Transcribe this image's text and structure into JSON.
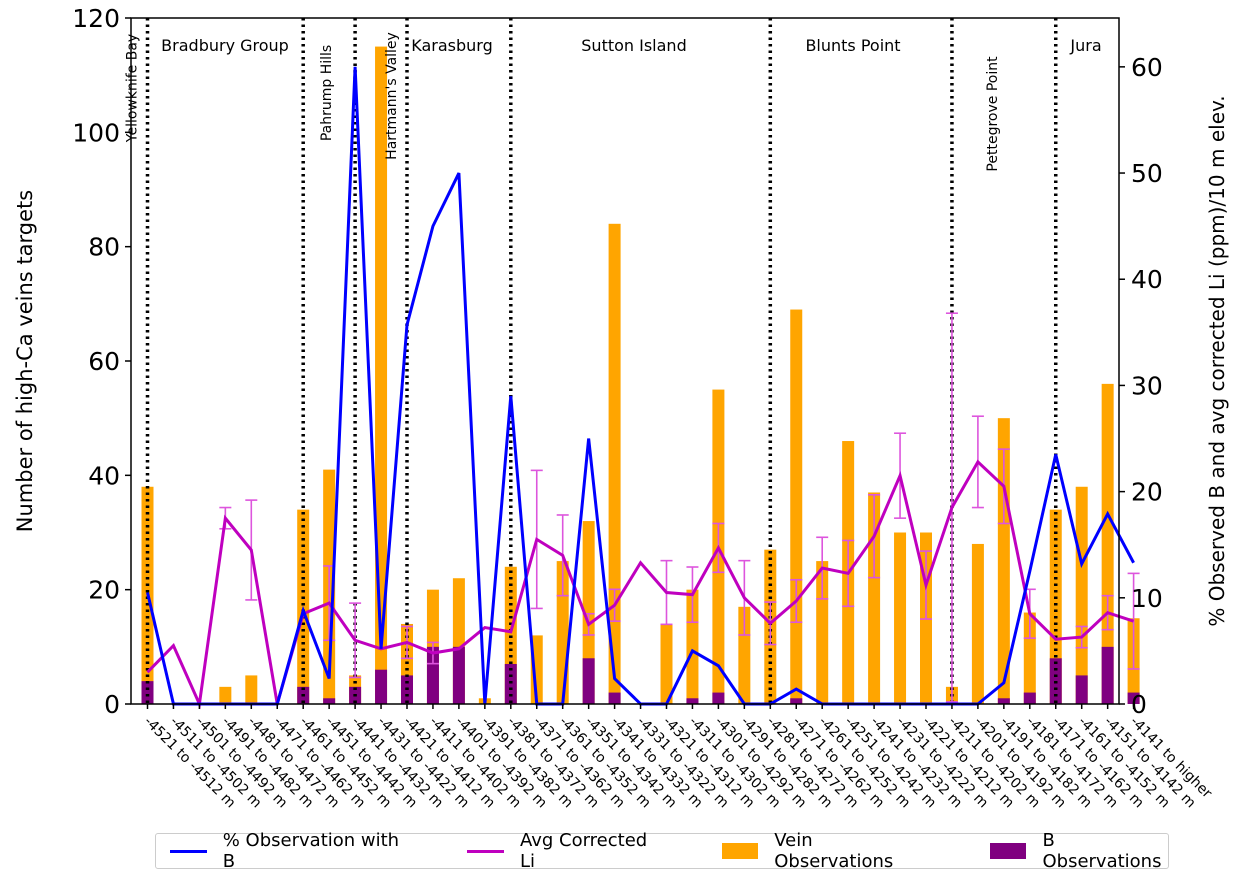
{
  "chart_data": {
    "type": "bar",
    "ylabel": "Number of high-Ca veins targets",
    "y2label": "% Observed B and avg corrected Li (ppm)/10 m elev.",
    "ylim": [
      0,
      120
    ],
    "yticks": [
      0,
      20,
      40,
      60,
      80,
      100,
      120
    ],
    "y2lim": [
      0,
      64.6
    ],
    "y2ticks": [
      0,
      10,
      20,
      30,
      40,
      50,
      60
    ],
    "categories": [
      "-4521 to -4512 m",
      "-4511 to -4502 m",
      "-4501 to -4492 m",
      "-4491 to -4482 m",
      "-4481 to -4472 m",
      "-4471 to -4462 m",
      "-4461 to -4452 m",
      "-4451 to -4442 m",
      "-4441 to -4432 m",
      "-4431 to -4422 m",
      "-4421 to -4412 m",
      "-4411 to -4402 m",
      "-4401 to -4392 m",
      "-4391 to -4382 m",
      "-4381 to -4372 m",
      "-4371 to -4362 m",
      "-4361 to -4352 m",
      "-4351 to -4342 m",
      "-4341 to -4332 m",
      "-4331 to -4322 m",
      "-4321 to -4312 m",
      "-4311 to -4302 m",
      "-4301 to -4292 m",
      "-4291 to -4282 m",
      "-4281 to -4272 m",
      "-4271 to -4262 m",
      "-4261 to -4252 m",
      "-4251 to -4242 m",
      "-4241 to -4232 m",
      "-4231 to -4222 m",
      "-4221 to -4212 m",
      "-4211 to -4202 m",
      "-4201 to -4192 m",
      "-4191 to -4182 m",
      "-4181 to -4172 m",
      "-4171 to -4162 m",
      "-4161 to -4152 m",
      "-4151 to -4142 m",
      "-4141 to higher"
    ],
    "series": [
      {
        "name": "Vein Observations",
        "axis": "left",
        "kind": "bar",
        "color": "#ffa500",
        "values": [
          38,
          0,
          0,
          3,
          5,
          0,
          34,
          41,
          5,
          115,
          14,
          20,
          22,
          1,
          24,
          12,
          25,
          32,
          84,
          0,
          14,
          20,
          55,
          17,
          27,
          69,
          25,
          46,
          37,
          30,
          30,
          3,
          28,
          50,
          16,
          34,
          38,
          56,
          15
        ]
      },
      {
        "name": "B Observations",
        "axis": "left",
        "kind": "bar",
        "color": "#800080",
        "values": [
          4,
          0,
          0,
          0,
          0,
          0,
          3,
          1,
          3,
          6,
          5,
          10,
          10,
          0,
          7,
          0,
          0,
          8,
          2,
          0,
          0,
          1,
          2,
          0,
          0,
          1,
          0,
          0,
          0,
          0,
          0,
          0,
          0,
          1,
          2,
          8,
          5,
          10,
          2
        ]
      },
      {
        "name": "% Observation with B",
        "axis": "right",
        "kind": "line",
        "color": "#0000ff",
        "values": [
          10.5,
          0,
          0,
          0,
          0,
          0,
          8.8,
          2.4,
          60,
          5.2,
          35.7,
          45,
          50,
          0,
          29,
          0,
          0,
          25,
          2.4,
          0,
          0,
          5,
          3.6,
          0,
          0,
          1.4,
          0,
          0,
          0,
          0,
          0,
          0,
          0,
          2,
          12.5,
          23.5,
          13.2,
          17.9,
          13.3
        ]
      },
      {
        "name": "Avg Corrected Li",
        "axis": "right",
        "kind": "line",
        "color": "#bf00bf",
        "values": [
          3,
          5.5,
          0,
          17.5,
          14.5,
          0,
          8.5,
          9.5,
          6,
          5.2,
          5.8,
          4.8,
          5.2,
          7.2,
          6.8,
          15.5,
          14,
          7.5,
          9.3,
          13.3,
          10.5,
          10.3,
          14.7,
          10,
          7.6,
          9.7,
          12.8,
          12.3,
          15.8,
          21.5,
          11.2,
          18.5,
          22.8,
          20.5,
          8.5,
          6.1,
          6.3,
          8.6,
          7.8
        ],
        "error_bars": [
          null,
          null,
          null,
          1,
          4.7,
          null,
          null,
          3.5,
          3.5,
          null,
          1.5,
          1,
          0,
          null,
          null,
          6.5,
          3.8,
          1,
          1.5,
          null,
          3,
          2.6,
          2.3,
          3.5,
          2,
          2,
          2.9,
          3.1,
          3.9,
          4,
          3.2,
          18.3,
          4.3,
          3.5,
          2.3,
          null,
          1,
          1.6,
          4.5
        ]
      }
    ],
    "regions": [
      {
        "label": "Yellowknife Bay",
        "vertical": true
      },
      {
        "label": "Bradbury Group",
        "vertical": false
      },
      {
        "label": "Pahrump Hills",
        "vertical": true
      },
      {
        "label": "Hartmann's Valley",
        "vertical": true
      },
      {
        "label": "Karasburg",
        "vertical": false
      },
      {
        "label": "Sutton Island",
        "vertical": false
      },
      {
        "label": "Blunts Point",
        "vertical": false
      },
      {
        "label": "Pettegrove Point",
        "vertical": true
      },
      {
        "label": "Jura",
        "vertical": false
      }
    ],
    "legend_position": "bottom"
  },
  "legend": [
    {
      "label": "% Observation with B",
      "kind": "line",
      "color": "#0000ff"
    },
    {
      "label": "Avg Corrected Li",
      "kind": "line",
      "color": "#bf00bf"
    },
    {
      "label": "Vein Observations",
      "kind": "box",
      "color": "#ffa500"
    },
    {
      "label": "B Observations",
      "kind": "box",
      "color": "#800080"
    }
  ]
}
